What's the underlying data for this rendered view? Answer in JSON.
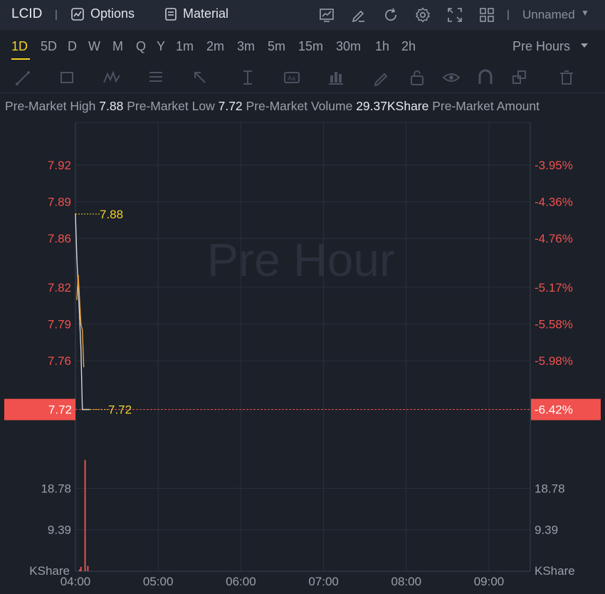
{
  "header": {
    "ticker": "LCID",
    "options_label": "Options",
    "material_label": "Material",
    "layout_name": "Unnamed",
    "icons": [
      "chart-template-icon",
      "draw-pen-icon",
      "refresh-icon",
      "settings-gear-icon",
      "fullscreen-icon",
      "grid-layout-icon"
    ]
  },
  "periods": {
    "items": [
      "1D",
      "5D",
      "D",
      "W",
      "M",
      "Q",
      "Y",
      "1m",
      "2m",
      "3m",
      "5m",
      "15m",
      "30m",
      "1h",
      "2h"
    ],
    "active": "1D",
    "session": "Pre Hours"
  },
  "toolbar": {
    "icons": [
      "trend-line-icon",
      "rectangle-icon",
      "pattern-icon",
      "fib-icon",
      "arrow-icon",
      "measure-icon",
      "text-label-icon",
      "indicator-icon",
      "pencil-icon",
      "lock-icon",
      "eye-icon",
      "magnet-icon",
      "layers-icon",
      "trash-icon"
    ]
  },
  "stats": {
    "high_label": "Pre-Market High",
    "high_value": "7.88",
    "low_label": "Pre-Market Low",
    "low_value": "7.72",
    "volume_label": "Pre-Market Volume",
    "volume_value": "29.37KShare",
    "amount_label": "Pre-Market Amount"
  },
  "chart_data": {
    "type": "line",
    "watermark": "Pre Hour",
    "price_axis": {
      "ticks": [
        "7.92",
        "7.89",
        "7.86",
        "7.82",
        "7.79",
        "7.76"
      ],
      "current": "7.72"
    },
    "percent_axis": {
      "ticks": [
        "-3.95%",
        "-4.36%",
        "-4.76%",
        "-5.17%",
        "-5.58%",
        "-5.98%"
      ],
      "current": "-6.42%"
    },
    "volume_axis": {
      "ticks": [
        "18.78",
        "9.39"
      ],
      "unit": "KShare"
    },
    "x_ticks": [
      "04:00",
      "05:00",
      "06:00",
      "07:00",
      "08:00",
      "09:00"
    ],
    "high_marker": "7.88",
    "low_marker": "7.72",
    "price_ylim": [
      7.7,
      7.955
    ],
    "series": [
      {
        "time": [
          "04:00",
          "04:01",
          "04:02",
          "04:03",
          "04:04",
          "04:05",
          "04:06",
          "04:07",
          "04:08",
          "04:09",
          "04:10"
        ],
        "values": [
          7.88,
          7.845,
          7.82,
          7.795,
          7.77,
          7.72,
          7.72,
          7.72,
          7.72,
          7.72,
          7.72
        ]
      },
      {
        "time": [
          "04:01",
          "04:02",
          "04:03",
          "04:04",
          "04:05",
          "04:06"
        ],
        "values": [
          7.81,
          7.83,
          7.81,
          7.79,
          7.785,
          7.755
        ]
      }
    ],
    "volume_ylim": [
      0,
      28.17
    ],
    "volume": {
      "time": [
        "04:03",
        "04:04",
        "04:07",
        "04:09"
      ],
      "values": [
        0.4,
        1.0,
        25.2,
        1.2
      ]
    },
    "colors": {
      "price_line": "#cfd6e0",
      "avg_line": "#e8a23c",
      "high_low_marker": "#f5d028",
      "down": "#f0514e",
      "volume_bar": "#e5534f"
    }
  }
}
